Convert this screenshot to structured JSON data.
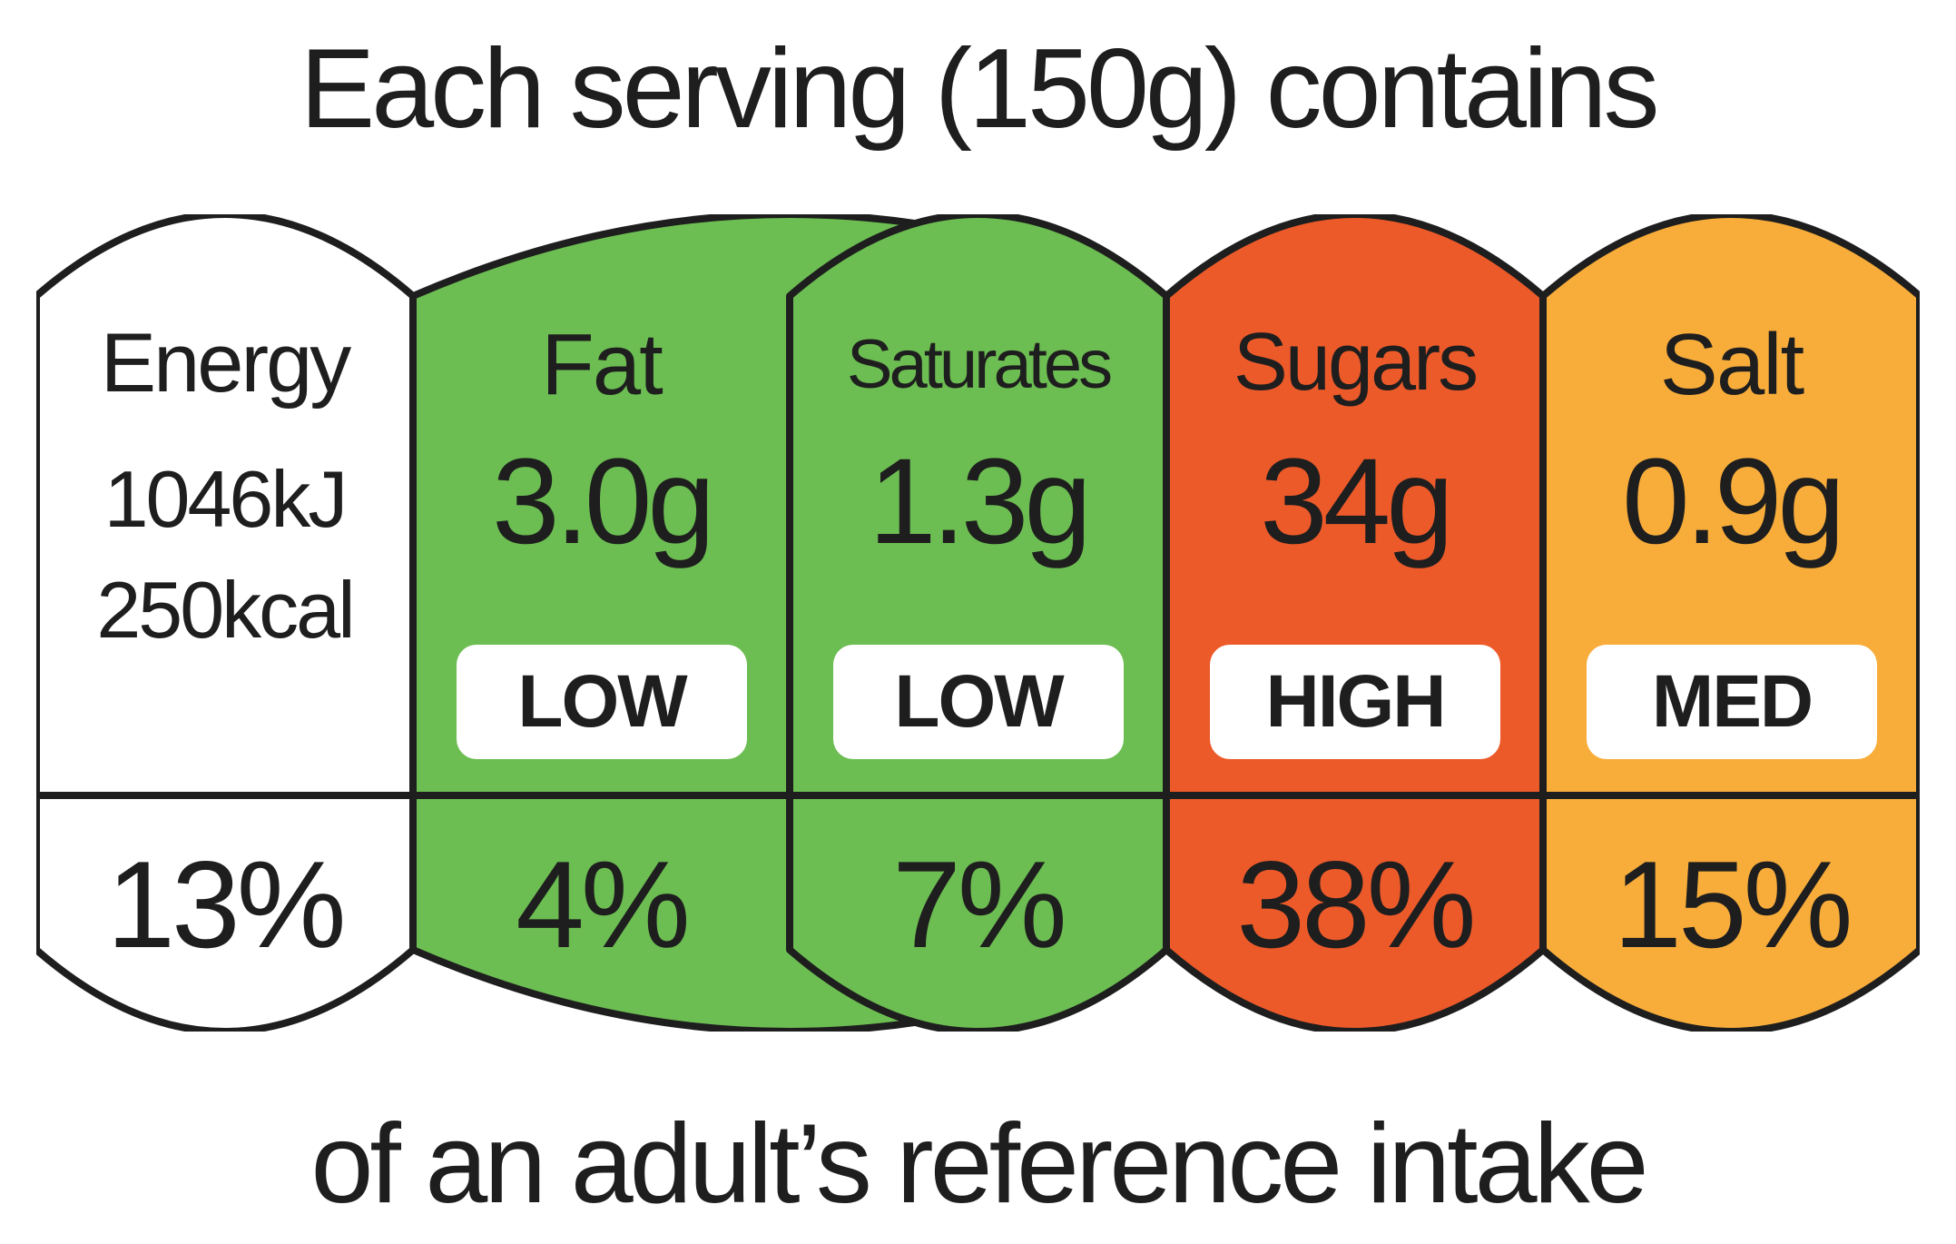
{
  "header": {
    "text": "Each serving (150g) contains"
  },
  "footer": {
    "text": "of an adult’s reference intake"
  },
  "colors": {
    "outline": "#1e1e1e",
    "white": "#ffffff",
    "green": "#6cbd52",
    "red": "#ec5a2a",
    "amber": "#f8ad3b"
  },
  "nutrients": [
    {
      "name": "Energy",
      "kj": "1046kJ",
      "kcal": "250kcal",
      "percent": "13%",
      "color": "#ffffff"
    },
    {
      "name": "Fat",
      "amount": "3.0g",
      "level": "LOW",
      "percent": "4%",
      "color": "#6cbd52"
    },
    {
      "name": "Saturates",
      "amount": "1.3g",
      "level": "LOW",
      "percent": "7%",
      "color": "#6cbd52"
    },
    {
      "name": "Sugars",
      "amount": "34g",
      "level": "HIGH",
      "percent": "38%",
      "color": "#ec5a2a"
    },
    {
      "name": "Salt",
      "amount": "0.9g",
      "level": "MED",
      "percent": "15%",
      "color": "#f8ad3b"
    }
  ]
}
